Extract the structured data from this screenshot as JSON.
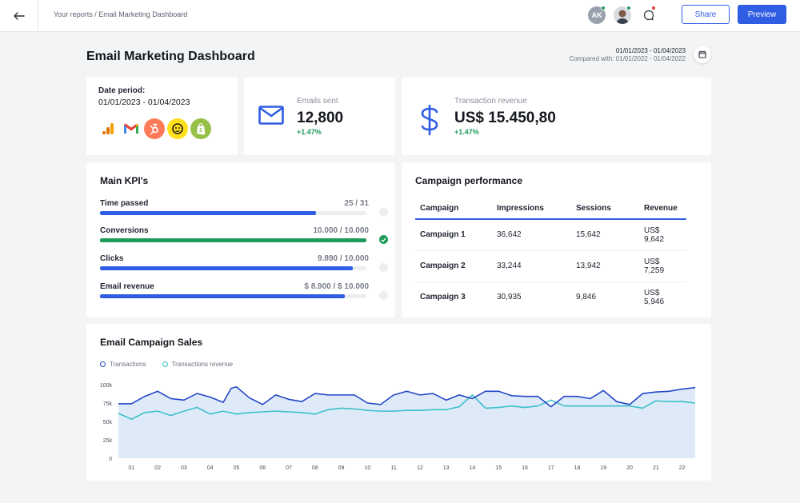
{
  "topbar": {
    "breadcrumb": "Your reports / Email Marketing Dashboard",
    "avatar_initials": "AK",
    "share_label": "Share",
    "preview_label": "Preview"
  },
  "page": {
    "title": "Email Marketing Dashboard",
    "date_range": "01/01/2023 - 01/04/2023",
    "compared_with": "Compared with: 01/01/2022 - 01/04/2022"
  },
  "date_card": {
    "label": "Date period:",
    "value": "01/01/2023 - 01/04/2023",
    "integrations": [
      "google-analytics-icon",
      "gmail-icon",
      "hubspot-icon",
      "mailchimp-icon",
      "shopify-icon"
    ]
  },
  "emails_sent": {
    "label": "Emails sent",
    "value": "12,800",
    "change": "+1.47%"
  },
  "transaction_revenue": {
    "label": "Transaction revenue",
    "value": "US$ 15.450,80",
    "change": "+1.47%"
  },
  "kpis": {
    "title": "Main KPI's",
    "items": [
      {
        "name": "Time passed",
        "value": "25 / 31",
        "progress": 0.81,
        "color": "#2f5de4",
        "complete": false
      },
      {
        "name": "Conversions",
        "value": "10.000 / 10.000",
        "progress": 1.0,
        "color": "#1e9a5b",
        "complete": true
      },
      {
        "name": "Clicks",
        "value": "9.890 / 10.000",
        "progress": 0.95,
        "color": "#2f5de4",
        "complete": false
      },
      {
        "name": "Email revenue",
        "value": "$ 8.900 / $ 10.000",
        "progress": 0.92,
        "color": "#2f5de4",
        "complete": false
      }
    ]
  },
  "campaigns": {
    "title": "Campaign performance",
    "headers": [
      "Campaign",
      "Impressions",
      "Sessions",
      "Revenue"
    ],
    "rows": [
      [
        "Campaign 1",
        "36,642",
        "15,642",
        "US$ 9,642"
      ],
      [
        "Campaign 2",
        "33,244",
        "13,942",
        "US$ 7,259"
      ],
      [
        "Campaign 3",
        "30,935",
        "9,846",
        "US$ 5,946"
      ]
    ]
  },
  "sales": {
    "title": "Email Campaign Sales",
    "legend": [
      "Transactions",
      "Transactions revenue"
    ]
  },
  "chart_data": {
    "type": "line",
    "x_ticks": [
      "01",
      "02",
      "03",
      "04",
      "05",
      "06",
      "07",
      "08",
      "09",
      "10",
      "11",
      "12",
      "13",
      "14",
      "15",
      "16",
      "17",
      "18",
      "19",
      "20",
      "21",
      "22"
    ],
    "y_ticks": [
      "100k",
      "75k",
      "50k",
      "25k",
      "0"
    ],
    "ylim": [
      0,
      100000
    ],
    "x_range": [
      1,
      23
    ],
    "grid": false,
    "legend_position": "top-left",
    "series": [
      {
        "name": "Transactions",
        "color": "#2346c7",
        "fill": "#dbe8f8",
        "x": [
          1,
          1.5,
          2,
          2.5,
          3,
          3.5,
          4,
          4.5,
          5,
          5.3,
          5.5,
          6,
          6.5,
          7,
          7.5,
          8,
          8.5,
          9,
          9.5,
          10,
          10.5,
          11,
          11.5,
          12,
          12.5,
          13,
          13.5,
          14,
          14.5,
          15,
          15.5,
          16,
          16.5,
          17,
          17.5,
          18,
          18.5,
          19,
          19.5,
          20,
          20.5,
          21,
          21.5,
          22,
          22.5,
          23
        ],
        "values": [
          74000,
          74000,
          84000,
          91000,
          81000,
          79000,
          88000,
          83000,
          76000,
          95000,
          97000,
          82000,
          73000,
          86000,
          80000,
          77000,
          88000,
          86000,
          86000,
          86000,
          75000,
          73000,
          86000,
          91000,
          86000,
          88000,
          79000,
          86000,
          81000,
          91000,
          91000,
          85000,
          84000,
          84000,
          70000,
          84000,
          84000,
          81000,
          92000,
          77000,
          73000,
          88000,
          90000,
          91000,
          94000,
          96000
        ]
      },
      {
        "name": "Transactions revenue",
        "color": "#3cc0c8",
        "x": [
          1,
          1.5,
          2,
          2.5,
          3,
          3.5,
          4,
          4.5,
          5,
          5.5,
          6,
          6.5,
          7,
          7.5,
          8,
          8.5,
          9,
          9.5,
          10,
          10.5,
          11,
          11.5,
          12,
          12.5,
          13,
          13.5,
          14,
          14.5,
          15,
          15.5,
          16,
          16.5,
          17,
          17.5,
          18,
          18.5,
          19,
          19.5,
          20,
          20.5,
          21,
          21.5,
          22,
          22.5,
          23
        ],
        "values": [
          61000,
          53000,
          62000,
          64000,
          58000,
          64000,
          69000,
          60000,
          64000,
          60000,
          62000,
          63000,
          64000,
          63000,
          62000,
          60000,
          66000,
          68000,
          67000,
          65000,
          64000,
          64000,
          65000,
          65000,
          66000,
          66000,
          70000,
          86000,
          68000,
          69000,
          71000,
          69000,
          71000,
          79000,
          71000,
          71000,
          71000,
          71000,
          71000,
          71000,
          68000,
          78000,
          77000,
          77000,
          75000
        ]
      }
    ]
  }
}
